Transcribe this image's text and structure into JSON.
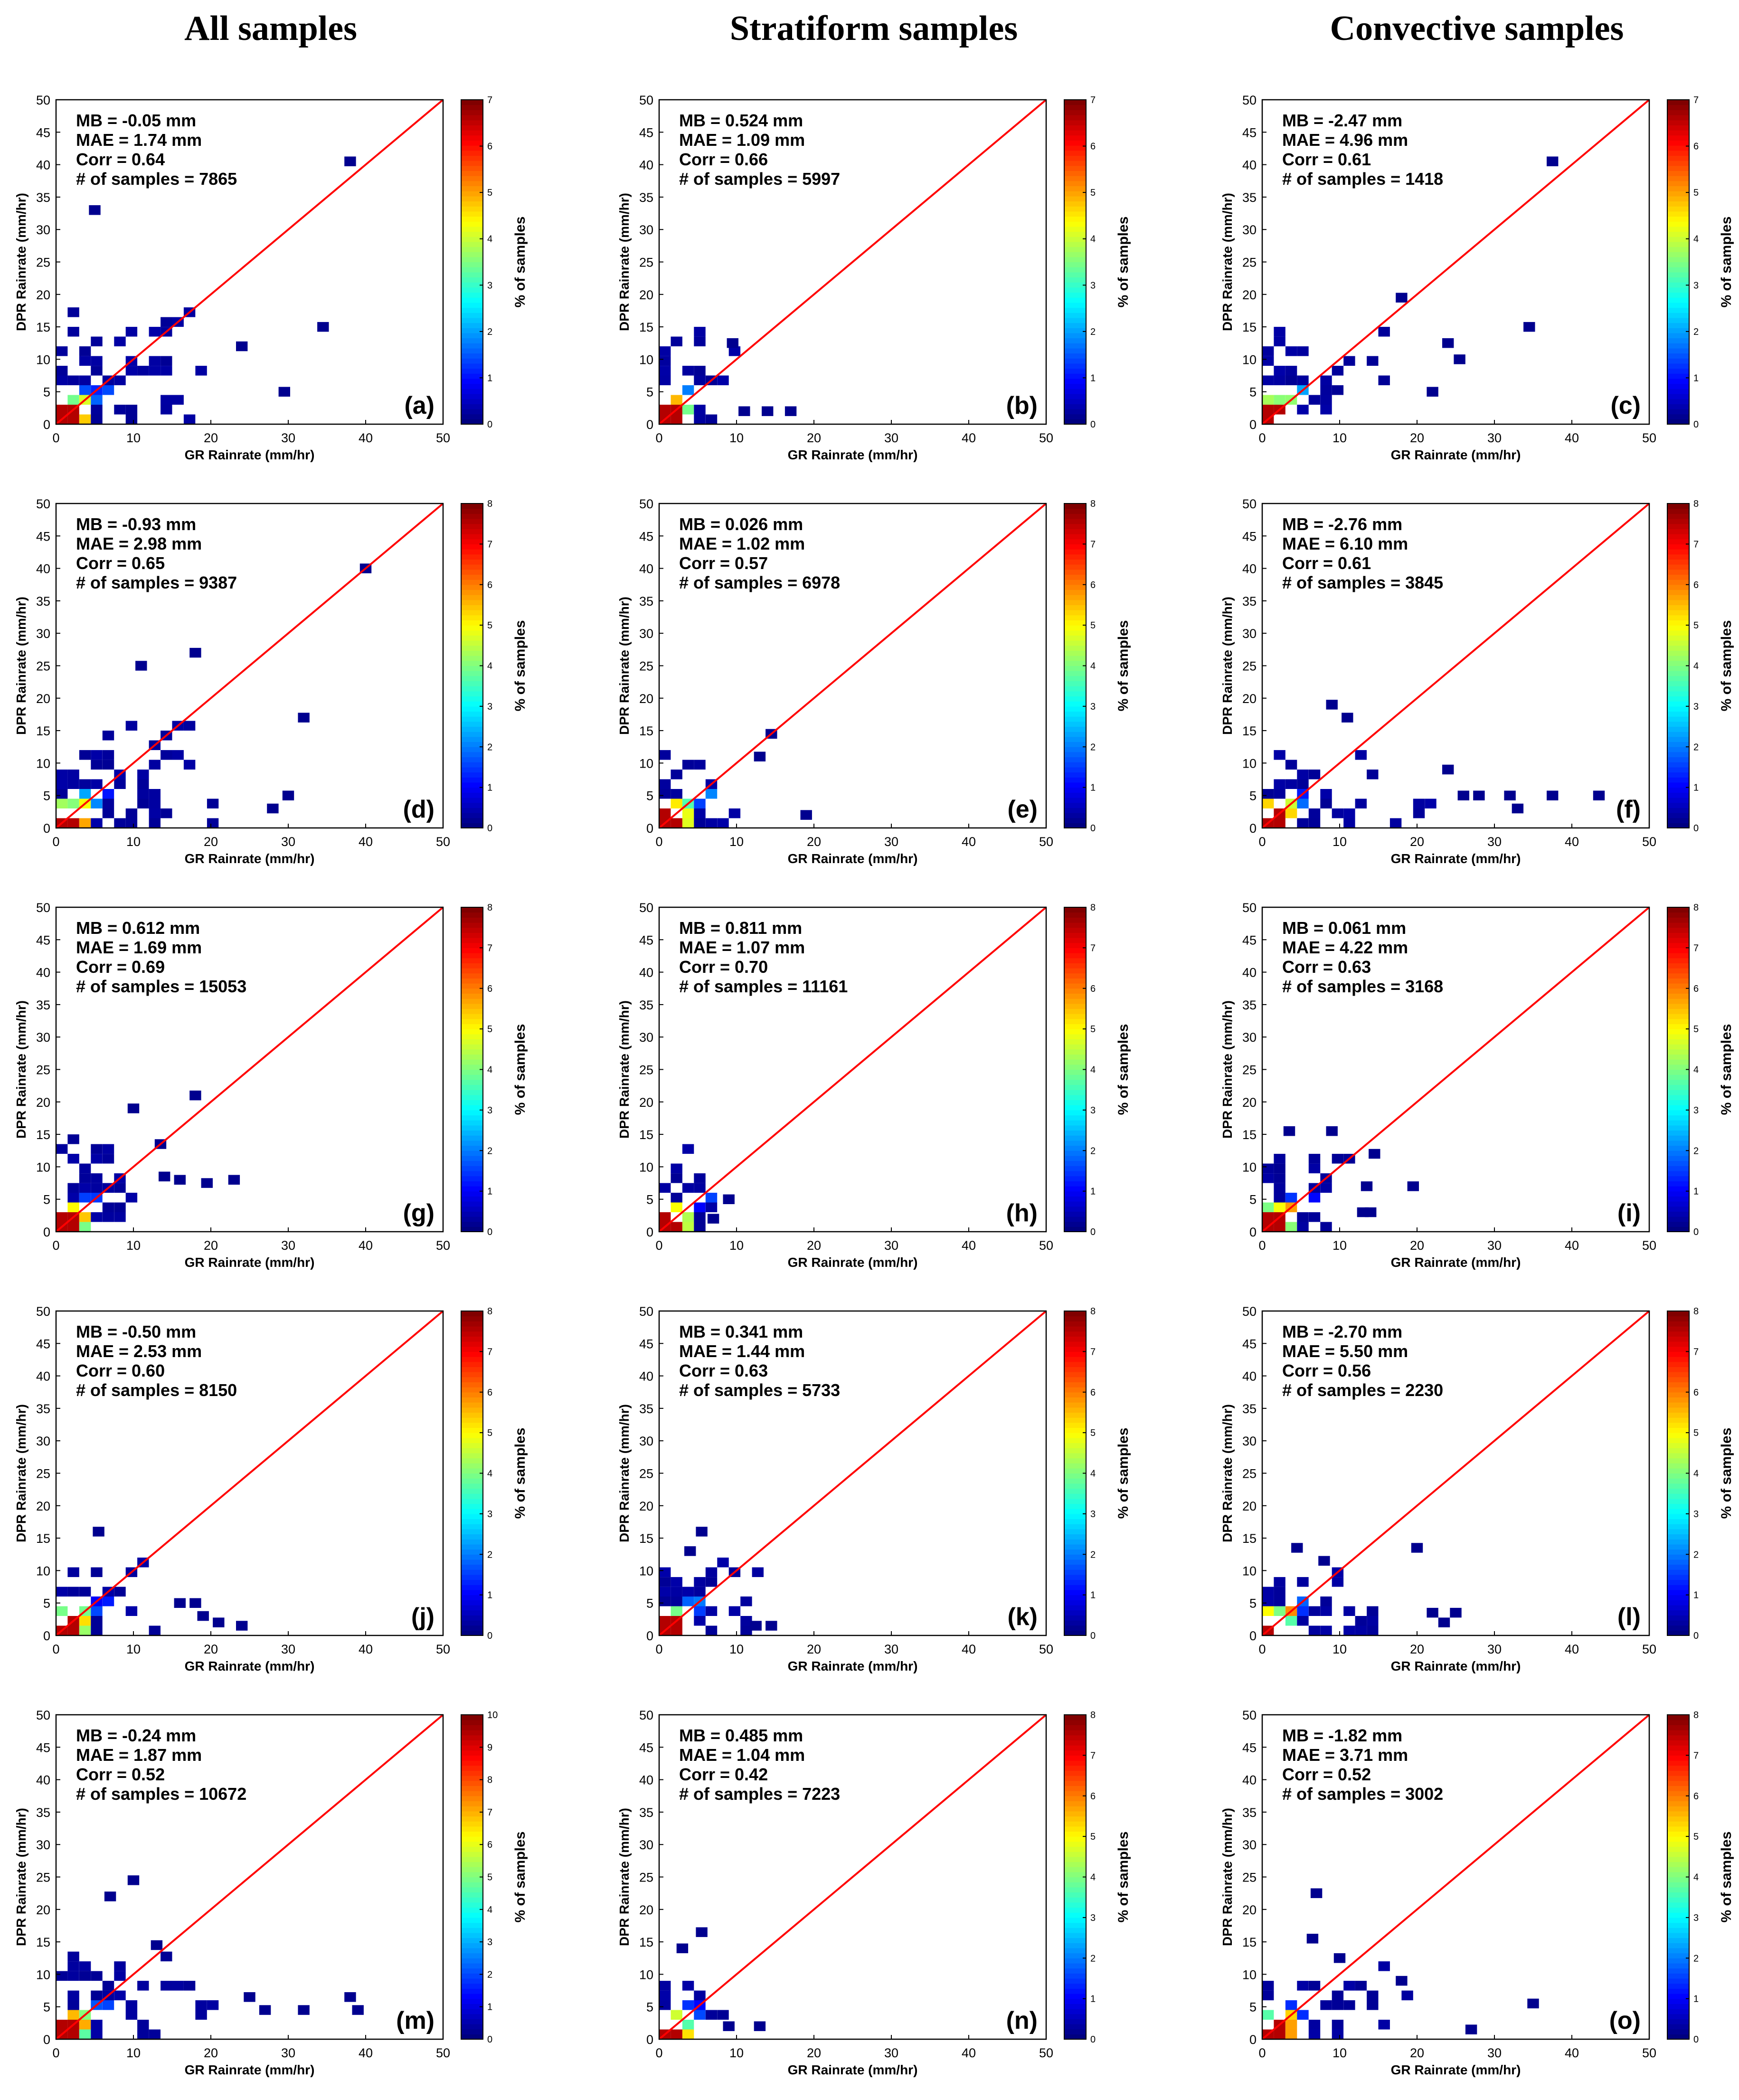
{
  "column_titles": [
    "All samples",
    "Stratiform samples",
    "Convective samples"
  ],
  "colors": {
    "diagonal": "#ff0000",
    "axis": "#000000",
    "cell_low": "#00008f"
  },
  "colormap": [
    "#000080",
    "#0000ff",
    "#0080ff",
    "#00ffff",
    "#80ff80",
    "#ffff00",
    "#ff8000",
    "#ff0000",
    "#800000"
  ],
  "chart_data": [
    {
      "label": "(a)",
      "type": "heatmap",
      "xlabel": "GR Rainrate (mm/hr)",
      "ylabel": "DPR Rainrate (mm/hr)",
      "colorbar_label": "% of samples",
      "xlim": [
        0,
        50
      ],
      "ylim": [
        0,
        50
      ],
      "xticks": [
        "0",
        "10",
        "20",
        "30",
        "40",
        "50"
      ],
      "yticks": [
        "0",
        "5",
        "10",
        "15",
        "20",
        "25",
        "30",
        "35",
        "40",
        "45",
        "50"
      ],
      "cbar_max": 7,
      "cbar_ticks": [
        "0",
        "1",
        "2",
        "3",
        "4",
        "5",
        "6",
        "7"
      ],
      "stats": [
        "MB = -0.05 mm",
        "MAE = 1.74 mm",
        "Corr = 0.64",
        "# of samples = 7865"
      ],
      "max_range": [
        20,
        20
      ],
      "outliers": [
        [
          38,
          40.5
        ],
        [
          5,
          33
        ],
        [
          34.5,
          15
        ],
        [
          29.5,
          5
        ],
        [
          24,
          12
        ]
      ],
      "density": 0.55,
      "seed": 11
    },
    {
      "label": "(b)",
      "type": "heatmap",
      "xlabel": "GR Rainrate (mm/hr)",
      "ylabel": "DPR Rainrate (mm/hr)",
      "colorbar_label": "% of samples",
      "xlim": [
        0,
        50
      ],
      "ylim": [
        0,
        50
      ],
      "xticks": [
        "0",
        "10",
        "20",
        "30",
        "40",
        "50"
      ],
      "yticks": [
        "0",
        "5",
        "10",
        "15",
        "20",
        "25",
        "30",
        "35",
        "40",
        "45",
        "50"
      ],
      "cbar_max": 7,
      "cbar_ticks": [
        "0",
        "1",
        "2",
        "3",
        "4",
        "5",
        "6",
        "7"
      ],
      "stats": [
        "MB = 0.524 mm",
        "MAE = 1.09 mm",
        "Corr = 0.66",
        "# of samples = 5997"
      ],
      "max_range": [
        10,
        15
      ],
      "outliers": [
        [
          17,
          2
        ],
        [
          14,
          2
        ],
        [
          11,
          2
        ],
        [
          9.5,
          12.5
        ]
      ],
      "density": 0.55,
      "seed": 23
    },
    {
      "label": "(c)",
      "type": "heatmap",
      "xlabel": "GR Rainrate (mm/hr)",
      "ylabel": "DPR Rainrate (mm/hr)",
      "colorbar_label": "% of samples",
      "xlim": [
        0,
        50
      ],
      "ylim": [
        0,
        50
      ],
      "xticks": [
        "0",
        "10",
        "20",
        "30",
        "40",
        "50"
      ],
      "yticks": [
        "0",
        "5",
        "10",
        "15",
        "20",
        "25",
        "30",
        "35",
        "40",
        "45",
        "50"
      ],
      "cbar_max": 7,
      "cbar_ticks": [
        "0",
        "1",
        "2",
        "3",
        "4",
        "5",
        "6",
        "7"
      ],
      "stats": [
        "MB = -2.47 mm",
        "MAE = 4.96 mm",
        "Corr = 0.61",
        "# of samples = 1418"
      ],
      "max_range": [
        16,
        15
      ],
      "outliers": [
        [
          37.5,
          40.5
        ],
        [
          18,
          19.5
        ],
        [
          34.5,
          15
        ],
        [
          24,
          12.5
        ],
        [
          25.5,
          10
        ],
        [
          22,
          5
        ]
      ],
      "density": 0.45,
      "seed": 37
    },
    {
      "label": "(d)",
      "type": "heatmap",
      "xlabel": "GR Rainrate (mm/hr)",
      "ylabel": "DPR Rainrate (mm/hr)",
      "colorbar_label": "% of samples",
      "xlim": [
        0,
        50
      ],
      "ylim": [
        0,
        50
      ],
      "xticks": [
        "0",
        "10",
        "20",
        "30",
        "40",
        "50"
      ],
      "yticks": [
        "0",
        "5",
        "10",
        "15",
        "20",
        "25",
        "30",
        "35",
        "40",
        "45",
        "50"
      ],
      "cbar_max": 8,
      "cbar_ticks": [
        "0",
        "1",
        "2",
        "3",
        "4",
        "5",
        "6",
        "7",
        "8"
      ],
      "stats": [
        "MB = -0.93 mm",
        "MAE = 2.98 mm",
        "Corr = 0.65",
        "# of samples = 9387"
      ],
      "max_range": [
        22,
        18
      ],
      "outliers": [
        [
          40,
          40
        ],
        [
          18,
          27
        ],
        [
          11,
          25
        ],
        [
          32,
          17
        ],
        [
          30,
          5
        ],
        [
          28,
          3
        ]
      ],
      "density": 0.6,
      "seed": 41
    },
    {
      "label": "(e)",
      "type": "heatmap",
      "xlabel": "GR Rainrate (mm/hr)",
      "ylabel": "DPR Rainrate (mm/hr)",
      "colorbar_label": "% of samples",
      "xlim": [
        0,
        50
      ],
      "ylim": [
        0,
        50
      ],
      "xticks": [
        "0",
        "10",
        "20",
        "30",
        "40",
        "50"
      ],
      "yticks": [
        "0",
        "5",
        "10",
        "15",
        "20",
        "25",
        "30",
        "35",
        "40",
        "45",
        "50"
      ],
      "cbar_max": 8,
      "cbar_ticks": [
        "0",
        "1",
        "2",
        "3",
        "4",
        "5",
        "6",
        "7",
        "8"
      ],
      "stats": [
        "MB = 0.026 mm",
        "MAE = 1.02 mm",
        "Corr = 0.57",
        "# of samples = 6978"
      ],
      "max_range": [
        10,
        13
      ],
      "outliers": [
        [
          14.5,
          14.5
        ],
        [
          19,
          2
        ],
        [
          13,
          11
        ]
      ],
      "density": 0.55,
      "seed": 53
    },
    {
      "label": "(f)",
      "type": "heatmap",
      "xlabel": "GR Rainrate (mm/hr)",
      "ylabel": "DPR Rainrate (mm/hr)",
      "colorbar_label": "% of samples",
      "xlim": [
        0,
        50
      ],
      "ylim": [
        0,
        50
      ],
      "xticks": [
        "0",
        "10",
        "20",
        "30",
        "40",
        "50"
      ],
      "yticks": [
        "0",
        "5",
        "10",
        "15",
        "20",
        "25",
        "30",
        "35",
        "40",
        "45",
        "50"
      ],
      "cbar_max": 8,
      "cbar_ticks": [
        "0",
        "1",
        "2",
        "3",
        "4",
        "5",
        "6",
        "7",
        "8"
      ],
      "stats": [
        "MB = -2.76 mm",
        "MAE = 6.10 mm",
        "Corr = 0.61",
        "# of samples = 3845"
      ],
      "max_range": [
        22,
        12
      ],
      "outliers": [
        [
          43.5,
          5
        ],
        [
          37.5,
          5
        ],
        [
          33,
          3
        ],
        [
          32,
          5
        ],
        [
          28,
          5
        ],
        [
          26,
          5
        ],
        [
          9,
          19
        ],
        [
          11,
          17
        ],
        [
          24,
          9
        ]
      ],
      "density": 0.45,
      "seed": 67
    },
    {
      "label": "(g)",
      "type": "heatmap",
      "xlabel": "GR Rainrate (mm/hr)",
      "ylabel": "DPR Rainrate (mm/hr)",
      "colorbar_label": "% of samples",
      "xlim": [
        0,
        50
      ],
      "ylim": [
        0,
        50
      ],
      "xticks": [
        "0",
        "10",
        "20",
        "30",
        "40",
        "50"
      ],
      "yticks": [
        "0",
        "5",
        "10",
        "15",
        "20",
        "25",
        "30",
        "35",
        "40",
        "45",
        "50"
      ],
      "cbar_max": 8,
      "cbar_ticks": [
        "0",
        "1",
        "2",
        "3",
        "4",
        "5",
        "6",
        "7",
        "8"
      ],
      "stats": [
        "MB = 0.612 mm",
        "MAE = 1.69 mm",
        "Corr = 0.69",
        "# of samples = 15053"
      ],
      "max_range": [
        11,
        16
      ],
      "outliers": [
        [
          18,
          21
        ],
        [
          23,
          8
        ],
        [
          19.5,
          7.5
        ],
        [
          16,
          8
        ],
        [
          14,
          8.5
        ],
        [
          13.5,
          13.5
        ],
        [
          10,
          19
        ]
      ],
      "density": 0.6,
      "seed": 71
    },
    {
      "label": "(h)",
      "type": "heatmap",
      "xlabel": "GR Rainrate (mm/hr)",
      "ylabel": "DPR Rainrate (mm/hr)",
      "colorbar_label": "% of samples",
      "xlim": [
        0,
        50
      ],
      "ylim": [
        0,
        50
      ],
      "xticks": [
        "0",
        "10",
        "20",
        "30",
        "40",
        "50"
      ],
      "yticks": [
        "0",
        "5",
        "10",
        "15",
        "20",
        "25",
        "30",
        "35",
        "40",
        "45",
        "50"
      ],
      "cbar_max": 8,
      "cbar_ticks": [
        "0",
        "1",
        "2",
        "3",
        "4",
        "5",
        "6",
        "7",
        "8"
      ],
      "stats": [
        "MB = 0.811 mm",
        "MAE = 1.07 mm",
        "Corr = 0.70",
        "# of samples = 11161"
      ],
      "max_range": [
        9,
        13
      ],
      "outliers": [
        [
          9,
          5
        ],
        [
          7,
          2
        ]
      ],
      "density": 0.65,
      "seed": 83
    },
    {
      "label": "(i)",
      "type": "heatmap",
      "xlabel": "GR Rainrate (mm/hr)",
      "ylabel": "DPR Rainrate (mm/hr)",
      "colorbar_label": "% of samples",
      "xlim": [
        0,
        50
      ],
      "ylim": [
        0,
        50
      ],
      "xticks": [
        "0",
        "10",
        "20",
        "30",
        "40",
        "50"
      ],
      "yticks": [
        "0",
        "5",
        "10",
        "15",
        "20",
        "25",
        "30",
        "35",
        "40",
        "45",
        "50"
      ],
      "cbar_max": 8,
      "cbar_ticks": [
        "0",
        "1",
        "2",
        "3",
        "4",
        "5",
        "6",
        "7",
        "8"
      ],
      "stats": [
        "MB = 0.061 mm",
        "MAE = 4.22 mm",
        "Corr = 0.63",
        "# of samples = 3168"
      ],
      "max_range": [
        11,
        12
      ],
      "outliers": [
        [
          19.5,
          7
        ],
        [
          14.5,
          12
        ],
        [
          13.5,
          7
        ],
        [
          14,
          3
        ],
        [
          9,
          15.5
        ],
        [
          3.5,
          15.5
        ],
        [
          13,
          3
        ]
      ],
      "density": 0.5,
      "seed": 97
    },
    {
      "label": "(j)",
      "type": "heatmap",
      "xlabel": "GR Rainrate (mm/hr)",
      "ylabel": "DPR Rainrate (mm/hr)",
      "colorbar_label": "% of samples",
      "xlim": [
        0,
        50
      ],
      "ylim": [
        0,
        50
      ],
      "xticks": [
        "0",
        "10",
        "20",
        "30",
        "40",
        "50"
      ],
      "yticks": [
        "0",
        "5",
        "10",
        "15",
        "20",
        "25",
        "30",
        "35",
        "40",
        "45",
        "50"
      ],
      "cbar_max": 8,
      "cbar_ticks": [
        "0",
        "1",
        "2",
        "3",
        "4",
        "5",
        "6",
        "7",
        "8"
      ],
      "stats": [
        "MB = -0.50 mm",
        "MAE = 2.53 mm",
        "Corr = 0.60",
        "# of samples = 8150"
      ],
      "max_range": [
        15,
        13
      ],
      "outliers": [
        [
          24,
          1.5
        ],
        [
          21,
          2
        ],
        [
          19,
          3
        ],
        [
          18,
          5
        ],
        [
          16,
          5
        ],
        [
          5.5,
          16
        ]
      ],
      "density": 0.55,
      "seed": 101
    },
    {
      "label": "(k)",
      "type": "heatmap",
      "xlabel": "GR Rainrate (mm/hr)",
      "ylabel": "DPR Rainrate (mm/hr)",
      "colorbar_label": "% of samples",
      "xlim": [
        0,
        50
      ],
      "ylim": [
        0,
        50
      ],
      "xticks": [
        "0",
        "10",
        "20",
        "30",
        "40",
        "50"
      ],
      "yticks": [
        "0",
        "5",
        "10",
        "15",
        "20",
        "25",
        "30",
        "35",
        "40",
        "45",
        "50"
      ],
      "cbar_max": 8,
      "cbar_ticks": [
        "0",
        "1",
        "2",
        "3",
        "4",
        "5",
        "6",
        "7",
        "8"
      ],
      "stats": [
        "MB = 0.341 mm",
        "MAE = 1.44 mm",
        "Corr = 0.63",
        "# of samples = 5733"
      ],
      "max_range": [
        13,
        14
      ],
      "outliers": [
        [
          14.5,
          1.5
        ],
        [
          12.5,
          1.5
        ],
        [
          5.5,
          16
        ],
        [
          4,
          13
        ]
      ],
      "density": 0.6,
      "seed": 113
    },
    {
      "label": "(l)",
      "type": "heatmap",
      "xlabel": "GR Rainrate (mm/hr)",
      "ylabel": "DPR Rainrate (mm/hr)",
      "colorbar_label": "% of samples",
      "xlim": [
        0,
        50
      ],
      "ylim": [
        0,
        50
      ],
      "xticks": [
        "0",
        "10",
        "20",
        "30",
        "40",
        "50"
      ],
      "yticks": [
        "0",
        "5",
        "10",
        "15",
        "20",
        "25",
        "30",
        "35",
        "40",
        "45",
        "50"
      ],
      "cbar_max": 8,
      "cbar_ticks": [
        "0",
        "1",
        "2",
        "3",
        "4",
        "5",
        "6",
        "7",
        "8"
      ],
      "stats": [
        "MB = -2.70 mm",
        "MAE = 5.50 mm",
        "Corr = 0.56",
        "# of samples = 2230"
      ],
      "max_range": [
        19,
        10
      ],
      "outliers": [
        [
          20,
          13.5
        ],
        [
          25,
          3.5
        ],
        [
          23.5,
          2
        ],
        [
          22,
          3.5
        ],
        [
          4.5,
          13.5
        ],
        [
          8,
          11.5
        ]
      ],
      "density": 0.5,
      "seed": 127
    },
    {
      "label": "(m)",
      "type": "heatmap",
      "xlabel": "GR Rainrate (mm/hr)",
      "ylabel": "DPR Rainrate (mm/hr)",
      "colorbar_label": "% of samples",
      "xlim": [
        0,
        50
      ],
      "ylim": [
        0,
        50
      ],
      "xticks": [
        "0",
        "10",
        "20",
        "30",
        "40",
        "50"
      ],
      "yticks": [
        "0",
        "5",
        "10",
        "15",
        "20",
        "25",
        "30",
        "35",
        "40",
        "45",
        "50"
      ],
      "cbar_max": 10,
      "cbar_ticks": [
        "0",
        "1",
        "2",
        "3",
        "4",
        "5",
        "6",
        "7",
        "8",
        "9",
        "10"
      ],
      "stats": [
        "MB = -0.24 mm",
        "MAE = 1.87 mm",
        "Corr = 0.52",
        "# of samples = 10672"
      ],
      "max_range": [
        20,
        15
      ],
      "outliers": [
        [
          39,
          4.5
        ],
        [
          38,
          6.5
        ],
        [
          32,
          4.5
        ],
        [
          27,
          4.5
        ],
        [
          25,
          6.5
        ],
        [
          10,
          24.5
        ],
        [
          7,
          22
        ],
        [
          13,
          14.5
        ]
      ],
      "density": 0.55,
      "seed": 131
    },
    {
      "label": "(n)",
      "type": "heatmap",
      "xlabel": "GR Rainrate (mm/hr)",
      "ylabel": "DPR Rainrate (mm/hr)",
      "colorbar_label": "% of samples",
      "xlim": [
        0,
        50
      ],
      "ylim": [
        0,
        50
      ],
      "xticks": [
        "0",
        "10",
        "20",
        "30",
        "40",
        "50"
      ],
      "yticks": [
        "0",
        "5",
        "10",
        "15",
        "20",
        "25",
        "30",
        "35",
        "40",
        "45",
        "50"
      ],
      "cbar_max": 8,
      "cbar_ticks": [
        "0",
        "1",
        "2",
        "3",
        "4",
        "5",
        "6",
        "7",
        "8"
      ],
      "stats": [
        "MB = 0.485 mm",
        "MAE = 1.04 mm",
        "Corr = 0.42",
        "# of samples = 7223"
      ],
      "max_range": [
        8,
        12
      ],
      "outliers": [
        [
          5.5,
          16.5
        ],
        [
          3,
          14
        ],
        [
          13,
          2
        ],
        [
          9,
          2
        ]
      ],
      "density": 0.55,
      "seed": 139
    },
    {
      "label": "(o)",
      "type": "heatmap",
      "xlabel": "GR Rainrate (mm/hr)",
      "ylabel": "DPR Rainrate (mm/hr)",
      "colorbar_label": "% of samples",
      "xlim": [
        0,
        50
      ],
      "ylim": [
        0,
        50
      ],
      "xticks": [
        "0",
        "10",
        "20",
        "30",
        "40",
        "50"
      ],
      "yticks": [
        "0",
        "5",
        "10",
        "15",
        "20",
        "25",
        "30",
        "35",
        "40",
        "45",
        "50"
      ],
      "cbar_max": 8,
      "cbar_ticks": [
        "0",
        "1",
        "2",
        "3",
        "4",
        "5",
        "6",
        "7",
        "8"
      ],
      "stats": [
        "MB = -1.82 mm",
        "MAE = 3.71 mm",
        "Corr = 0.52",
        "# of samples = 3002"
      ],
      "max_range": [
        20,
        13
      ],
      "outliers": [
        [
          35,
          5.5
        ],
        [
          27,
          1.5
        ],
        [
          7,
          22.5
        ],
        [
          6.5,
          15.5
        ],
        [
          10,
          12.5
        ],
        [
          18,
          9
        ]
      ],
      "density": 0.5,
      "seed": 149
    }
  ]
}
